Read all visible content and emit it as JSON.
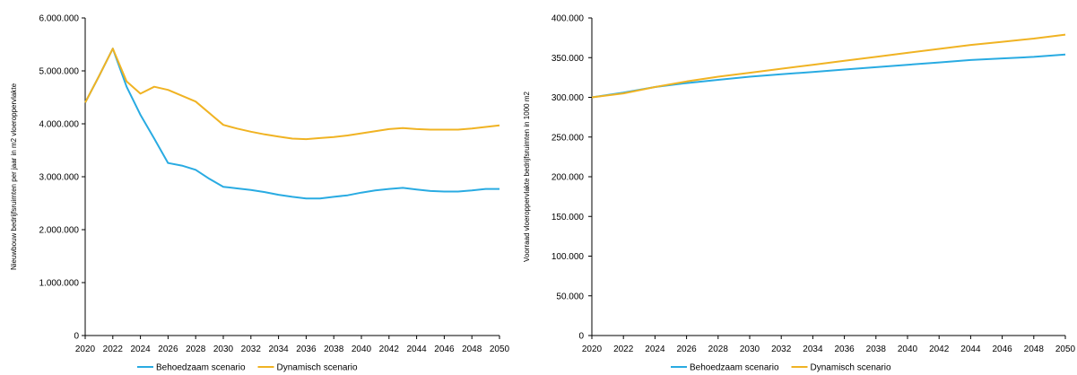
{
  "colors": {
    "behoedzaam": "#29ABE2",
    "dynamisch": "#F0B323"
  },
  "legend": {
    "behoedzaam": "Behoedzaam scenario",
    "dynamisch": "Dynamisch scenario"
  },
  "chart_data": [
    {
      "type": "line",
      "title": "",
      "xlabel": "",
      "ylabel": "Nieuwbouw bedrijfsruimten per jaar in m2 vloeroppervlakte",
      "ylim": [
        0,
        6000000
      ],
      "yticks": [
        "0",
        "1.000.000",
        "2.000.000",
        "3.000.000",
        "4.000.000",
        "5.000.000",
        "6.000.000"
      ],
      "xticks": [
        "2020",
        "2022",
        "2024",
        "2026",
        "2028",
        "2030",
        "2032",
        "2034",
        "2036",
        "2038",
        "2040",
        "2042",
        "2044",
        "2046",
        "2048",
        "2050"
      ],
      "legend_position": "bottom",
      "x": [
        2020,
        2021,
        2022,
        2023,
        2024,
        2025,
        2026,
        2027,
        2028,
        2029,
        2030,
        2031,
        2032,
        2033,
        2034,
        2035,
        2036,
        2037,
        2038,
        2039,
        2040,
        2041,
        2042,
        2043,
        2044,
        2045,
        2046,
        2047,
        2048,
        2049,
        2050
      ],
      "series": [
        {
          "name": "Behoedzaam scenario",
          "color_key": "behoedzaam",
          "values": [
            4400000,
            4900000,
            5420000,
            4700000,
            4170000,
            3720000,
            3260000,
            3210000,
            3130000,
            2960000,
            2810000,
            2780000,
            2750000,
            2710000,
            2660000,
            2620000,
            2590000,
            2590000,
            2620000,
            2650000,
            2700000,
            2740000,
            2770000,
            2790000,
            2760000,
            2730000,
            2720000,
            2720000,
            2740000,
            2770000,
            2770000
          ]
        },
        {
          "name": "Dynamisch scenario",
          "color_key": "dynamisch",
          "values": [
            4400000,
            4900000,
            5420000,
            4800000,
            4570000,
            4700000,
            4640000,
            4530000,
            4420000,
            4200000,
            3980000,
            3910000,
            3850000,
            3800000,
            3760000,
            3720000,
            3710000,
            3730000,
            3750000,
            3780000,
            3820000,
            3860000,
            3900000,
            3920000,
            3900000,
            3890000,
            3890000,
            3890000,
            3910000,
            3940000,
            3970000
          ]
        }
      ]
    },
    {
      "type": "line",
      "title": "",
      "xlabel": "",
      "ylabel": "Voorraad vloeroppervlakte bedrijfsruimten in 1000 m2",
      "ylim": [
        0,
        400000
      ],
      "yticks": [
        "0",
        "50.000",
        "100.000",
        "150.000",
        "200.000",
        "250.000",
        "300.000",
        "350.000",
        "400.000"
      ],
      "xticks": [
        "2020",
        "2022",
        "2024",
        "2026",
        "2028",
        "2030",
        "2032",
        "2034",
        "2036",
        "2038",
        "2040",
        "2042",
        "2044",
        "2046",
        "2048",
        "2050"
      ],
      "legend_position": "bottom",
      "x": [
        2020,
        2022,
        2024,
        2026,
        2028,
        2030,
        2032,
        2034,
        2036,
        2038,
        2040,
        2042,
        2044,
        2046,
        2048,
        2050
      ],
      "series": [
        {
          "name": "Behoedzaam scenario",
          "color_key": "behoedzaam",
          "values": [
            300000,
            306000,
            313000,
            318000,
            322000,
            326000,
            329000,
            332000,
            335000,
            338000,
            341000,
            344000,
            347000,
            349000,
            351000,
            354000
          ]
        },
        {
          "name": "Dynamisch scenario",
          "color_key": "dynamisch",
          "values": [
            300000,
            305000,
            313000,
            320000,
            326000,
            331000,
            336000,
            341000,
            346000,
            351000,
            356000,
            361000,
            366000,
            370000,
            374000,
            379000
          ]
        }
      ]
    }
  ]
}
